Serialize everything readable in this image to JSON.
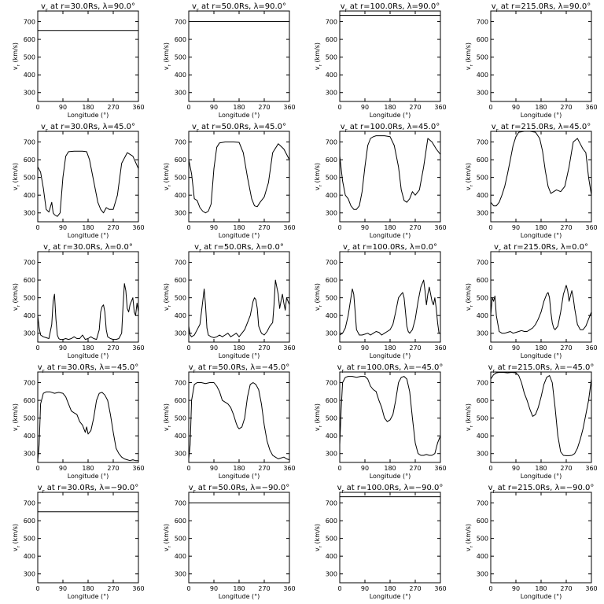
{
  "chart_data": {
    "type": "line",
    "xlabel": "Longitude (°)",
    "ylabel": "v$r$ (km/s)",
    "xlim": [
      0,
      360
    ],
    "ylim": [
      250,
      760
    ],
    "xticks": [
      0,
      90,
      180,
      270,
      360
    ],
    "yticks": [
      300,
      400,
      500,
      600,
      700
    ],
    "grid": false,
    "panels": [
      {
        "title": "v$r$ at r=30.0Rs, λ=90.0°",
        "x": [
          0,
          360
        ],
        "y": [
          650,
          650
        ]
      },
      {
        "title": "v$r$ at r=50.0Rs, λ=90.0°",
        "x": [
          0,
          360
        ],
        "y": [
          700,
          700
        ]
      },
      {
        "title": "v$r$ at r=100.0Rs, λ=90.0°",
        "x": [
          0,
          360
        ],
        "y": [
          735,
          735
        ]
      },
      {
        "title": "v$r$ at r=215.0Rs, λ=90.0°",
        "x": [
          0,
          360
        ],
        "y": [
          760,
          760
        ]
      },
      {
        "title": "v$r$ at r=30.0Rs, λ=45.0°",
        "x": [
          0,
          10,
          20,
          30,
          40,
          50,
          55,
          60,
          70,
          80,
          90,
          100,
          110,
          130,
          160,
          175,
          185,
          200,
          215,
          225,
          235,
          245,
          255,
          270,
          285,
          300,
          320,
          340,
          360
        ],
        "y": [
          560,
          530,
          440,
          320,
          305,
          360,
          300,
          290,
          280,
          300,
          500,
          620,
          645,
          648,
          648,
          645,
          600,
          480,
          360,
          320,
          300,
          330,
          320,
          320,
          400,
          580,
          640,
          620,
          550
        ]
      },
      {
        "title": "v$r$ at r=50.0Rs, λ=45.0°",
        "x": [
          0,
          10,
          20,
          30,
          40,
          50,
          60,
          70,
          80,
          90,
          100,
          110,
          130,
          160,
          180,
          195,
          210,
          225,
          235,
          245,
          255,
          270,
          285,
          300,
          320,
          340,
          360
        ],
        "y": [
          600,
          520,
          380,
          370,
          330,
          310,
          300,
          310,
          350,
          550,
          670,
          695,
          700,
          700,
          698,
          640,
          500,
          380,
          340,
          335,
          360,
          390,
          470,
          640,
          690,
          660,
          600
        ]
      },
      {
        "title": "v$r$ at r=100.0Rs, λ=45.0°",
        "x": [
          0,
          10,
          20,
          30,
          40,
          50,
          60,
          70,
          80,
          90,
          100,
          110,
          120,
          130,
          160,
          180,
          195,
          210,
          220,
          230,
          240,
          250,
          260,
          270,
          285,
          300,
          315,
          330,
          345,
          360
        ],
        "y": [
          620,
          480,
          400,
          380,
          340,
          320,
          320,
          340,
          420,
          560,
          680,
          720,
          730,
          735,
          735,
          730,
          680,
          560,
          430,
          370,
          360,
          380,
          420,
          400,
          430,
          560,
          720,
          700,
          660,
          630
        ]
      },
      {
        "title": "v$r$ at r=215.0Rs, λ=45.0°",
        "x": [
          0,
          10,
          20,
          30,
          40,
          50,
          60,
          70,
          80,
          90,
          100,
          120,
          140,
          160,
          175,
          185,
          195,
          205,
          215,
          225,
          235,
          250,
          265,
          280,
          295,
          310,
          320,
          330,
          340,
          350,
          360
        ],
        "y": [
          360,
          340,
          340,
          360,
          400,
          450,
          520,
          600,
          680,
          730,
          755,
          760,
          760,
          755,
          720,
          650,
          540,
          450,
          410,
          420,
          430,
          420,
          450,
          560,
          700,
          720,
          690,
          660,
          640,
          500,
          400
        ]
      },
      {
        "title": "v$r$ at r=30.0Rs, λ=0.0°",
        "x": [
          0,
          5,
          10,
          20,
          30,
          40,
          50,
          55,
          60,
          65,
          70,
          75,
          80,
          90,
          100,
          110,
          120,
          130,
          140,
          150,
          160,
          170,
          180,
          190,
          200,
          210,
          220,
          225,
          230,
          235,
          240,
          245,
          250,
          260,
          270,
          280,
          290,
          300,
          305,
          310,
          315,
          320,
          325,
          330,
          335,
          340,
          345,
          350,
          355,
          360
        ],
        "y": [
          400,
          330,
          290,
          280,
          275,
          270,
          350,
          480,
          520,
          380,
          290,
          270,
          265,
          265,
          270,
          265,
          270,
          280,
          270,
          270,
          290,
          265,
          270,
          280,
          270,
          265,
          320,
          420,
          450,
          460,
          420,
          320,
          280,
          270,
          265,
          265,
          270,
          300,
          450,
          580,
          540,
          440,
          420,
          460,
          480,
          500,
          420,
          400,
          470,
          420
        ]
      },
      {
        "title": "v$r$ at r=50.0Rs, λ=0.0°",
        "x": [
          0,
          5,
          10,
          20,
          30,
          40,
          50,
          55,
          60,
          65,
          70,
          80,
          90,
          100,
          110,
          120,
          130,
          140,
          150,
          160,
          170,
          180,
          190,
          200,
          210,
          220,
          230,
          235,
          240,
          245,
          250,
          260,
          270,
          280,
          290,
          300,
          305,
          310,
          320,
          325,
          330,
          335,
          340,
          345,
          350,
          355,
          360
        ],
        "y": [
          340,
          290,
          280,
          290,
          320,
          350,
          480,
          550,
          460,
          330,
          290,
          280,
          275,
          280,
          290,
          280,
          290,
          300,
          280,
          290,
          300,
          280,
          300,
          320,
          360,
          400,
          480,
          500,
          490,
          440,
          340,
          300,
          290,
          310,
          340,
          360,
          460,
          600,
          520,
          440,
          480,
          520,
          470,
          430,
          500,
          480,
          460
        ]
      },
      {
        "title": "v$r$ at r=100.0Rs, λ=0.0°",
        "x": [
          0,
          10,
          20,
          30,
          40,
          45,
          50,
          55,
          60,
          70,
          80,
          90,
          100,
          110,
          120,
          130,
          140,
          150,
          160,
          170,
          180,
          190,
          200,
          210,
          220,
          225,
          230,
          235,
          240,
          245,
          250,
          260,
          270,
          280,
          290,
          300,
          305,
          310,
          315,
          320,
          325,
          330,
          335,
          340,
          345,
          350,
          355,
          360
        ],
        "y": [
          290,
          300,
          330,
          400,
          500,
          550,
          520,
          420,
          320,
          290,
          290,
          295,
          300,
          290,
          300,
          310,
          305,
          290,
          300,
          310,
          320,
          350,
          420,
          500,
          520,
          530,
          500,
          420,
          340,
          310,
          300,
          320,
          380,
          480,
          560,
          600,
          540,
          460,
          520,
          560,
          520,
          480,
          460,
          500,
          440,
          360,
          300,
          300
        ]
      },
      {
        "title": "v$r$ at r=215.0Rs, λ=0.0°",
        "x": [
          0,
          5,
          10,
          15,
          20,
          30,
          40,
          50,
          60,
          70,
          80,
          90,
          100,
          110,
          120,
          130,
          140,
          150,
          160,
          170,
          180,
          190,
          200,
          205,
          210,
          215,
          220,
          225,
          230,
          240,
          250,
          260,
          270,
          275,
          280,
          285,
          290,
          295,
          300,
          310,
          320,
          330,
          340,
          350,
          360
        ],
        "y": [
          400,
          500,
          480,
          510,
          400,
          310,
          300,
          300,
          305,
          310,
          300,
          305,
          310,
          315,
          310,
          310,
          320,
          330,
          350,
          380,
          420,
          480,
          520,
          530,
          500,
          420,
          360,
          330,
          320,
          340,
          420,
          520,
          570,
          540,
          480,
          510,
          540,
          500,
          440,
          350,
          320,
          320,
          340,
          380,
          420
        ]
      },
      {
        "title": "v$r$ at r=30.0Rs, λ=−45.0°",
        "x": [
          0,
          5,
          10,
          20,
          30,
          45,
          60,
          75,
          90,
          100,
          110,
          120,
          130,
          140,
          150,
          160,
          170,
          175,
          180,
          185,
          190,
          200,
          210,
          220,
          230,
          240,
          250,
          260,
          270,
          280,
          290,
          300,
          310,
          320,
          330,
          340,
          350,
          360
        ],
        "y": [
          260,
          350,
          580,
          640,
          648,
          648,
          640,
          645,
          640,
          620,
          580,
          540,
          530,
          520,
          480,
          460,
          420,
          450,
          410,
          420,
          430,
          500,
          600,
          640,
          645,
          630,
          600,
          520,
          420,
          330,
          300,
          280,
          270,
          265,
          260,
          265,
          260,
          260
        ]
      },
      {
        "title": "v$r$ at r=50.0Rs, λ=−45.0°",
        "x": [
          0,
          5,
          10,
          20,
          30,
          45,
          60,
          75,
          90,
          100,
          110,
          120,
          130,
          140,
          150,
          160,
          170,
          175,
          180,
          190,
          200,
          210,
          220,
          230,
          240,
          250,
          260,
          270,
          280,
          290,
          300,
          310,
          320,
          330,
          340,
          350,
          360
        ],
        "y": [
          270,
          350,
          600,
          690,
          700,
          700,
          695,
          700,
          700,
          680,
          650,
          600,
          590,
          580,
          560,
          520,
          470,
          450,
          440,
          450,
          500,
          620,
          690,
          700,
          690,
          660,
          580,
          460,
          370,
          320,
          290,
          280,
          270,
          275,
          280,
          270,
          265
        ]
      },
      {
        "title": "v$r$ at r=100.0Rs, λ=−45.0°",
        "x": [
          0,
          5,
          10,
          20,
          30,
          45,
          60,
          75,
          90,
          100,
          110,
          120,
          130,
          140,
          150,
          160,
          170,
          180,
          190,
          200,
          210,
          220,
          230,
          240,
          250,
          260,
          270,
          280,
          290,
          300,
          310,
          320,
          330,
          340,
          350,
          360
        ],
        "y": [
          350,
          550,
          700,
          730,
          735,
          735,
          730,
          735,
          735,
          720,
          680,
          660,
          650,
          600,
          560,
          500,
          480,
          490,
          520,
          600,
          700,
          730,
          735,
          720,
          650,
          500,
          360,
          300,
          290,
          290,
          295,
          290,
          290,
          300,
          360,
          400
        ]
      },
      {
        "title": "v$r$ at r=215.0Rs, λ=−45.0°",
        "x": [
          0,
          10,
          20,
          30,
          45,
          60,
          75,
          90,
          100,
          110,
          120,
          130,
          140,
          150,
          160,
          170,
          180,
          190,
          200,
          210,
          220,
          230,
          240,
          250,
          260,
          270,
          280,
          290,
          300,
          310,
          320,
          330,
          340,
          350,
          360
        ],
        "y": [
          720,
          745,
          755,
          758,
          758,
          755,
          758,
          755,
          740,
          700,
          640,
          600,
          550,
          510,
          520,
          560,
          620,
          690,
          730,
          740,
          700,
          560,
          400,
          310,
          290,
          288,
          288,
          290,
          300,
          330,
          380,
          440,
          520,
          600,
          720
        ]
      },
      {
        "title": "v$r$ at r=30.0Rs, λ=−90.0°",
        "x": [
          0,
          360
        ],
        "y": [
          650,
          650
        ]
      },
      {
        "title": "v$r$ at r=50.0Rs, λ=−90.0°",
        "x": [
          0,
          360
        ],
        "y": [
          700,
          700
        ]
      },
      {
        "title": "v$r$ at r=100.0Rs, λ=−90.0°",
        "x": [
          0,
          360
        ],
        "y": [
          735,
          735
        ]
      },
      {
        "title": "v$r$ at r=215.0Rs, λ=−90.0°",
        "x": [
          0,
          360
        ],
        "y": [
          760,
          760
        ]
      }
    ]
  }
}
